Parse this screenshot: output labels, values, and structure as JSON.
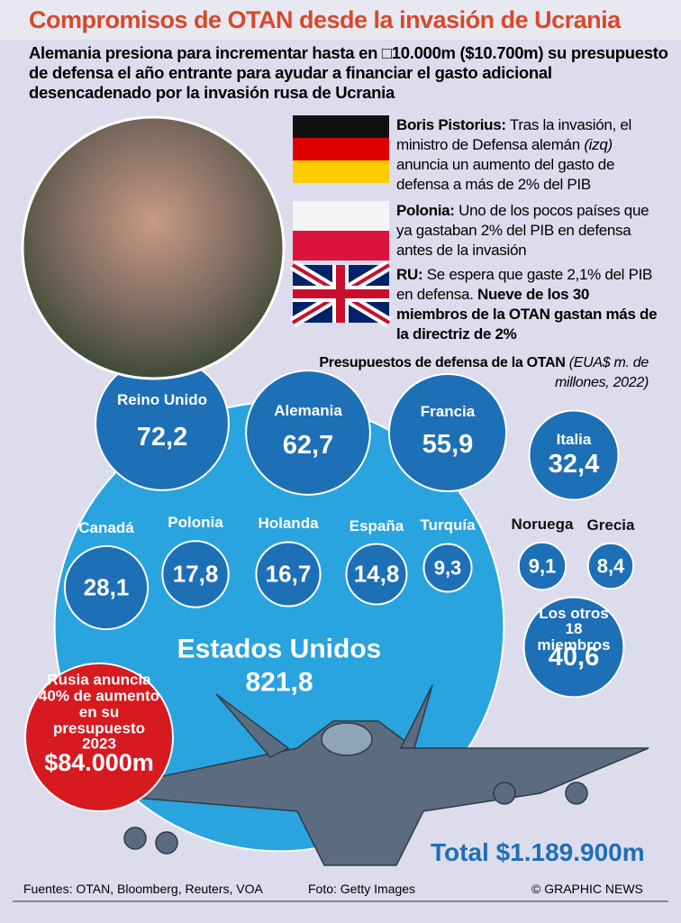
{
  "header": {
    "title": "Compromisos de OTAN desde la invasión de Ucrania",
    "subtitle": "Alemania presiona para incrementar hasta en □10.000m ($10.700m) su presupuesto de defensa el año entrante para ayudar a financiar el gasto adicional desencadenado por la invasión rusa de Ucrania"
  },
  "notes": [
    {
      "bold": "Boris Pistorius:",
      "text": "Tras la invasión, el ministro de Defensa alemán",
      "italic": "(izq)",
      "text2": "anuncia un aumento del gasto de defensa a más de 2% del PIB"
    },
    {
      "bold": "Polonia:",
      "text": "Uno de los pocos países que ya gastaban 2% del PIB en defensa antes de la invasión"
    },
    {
      "bold": "RU:",
      "text": "Se espera que gaste 2,1% del PIB en defensa.",
      "bold2": "Nueve de los 30 miembros de la OTAN gastan más de la directriz de 2%"
    }
  ],
  "chart_data": {
    "type": "bubble",
    "title": "Presupuestos de defensa de la OTAN",
    "units": "(EUA$ m. de millones, 2022)",
    "categories": [
      "Estados Unidos",
      "Reino Unido",
      "Alemania",
      "Francia",
      "Italia",
      "Canadá",
      "Polonia",
      "Holanda",
      "España",
      "Turquía",
      "Noruega",
      "Grecia",
      "Los otros 18 miembros"
    ],
    "values": [
      821.8,
      72.2,
      62.7,
      55.9,
      32.4,
      28.1,
      17.8,
      16.7,
      14.8,
      9.3,
      9.1,
      8.4,
      40.6
    ],
    "value_labels": [
      "821,8",
      "72,2",
      "62,7",
      "55,9",
      "32,4",
      "28,1",
      "17,8",
      "16,7",
      "14,8",
      "9,3",
      "9,1",
      "8,4",
      "40,6"
    ],
    "color": "#1d6fb6",
    "highlight_color": "#29a4de",
    "total": "Total $1.189.900m"
  },
  "russia": {
    "text": "Rusia anuncia 40% de aumento en su presupuesto 2023",
    "amount": "$84.000m"
  },
  "footer": {
    "sources": "Fuentes: OTAN, Bloomberg, Reuters, VOA",
    "photo": "Foto: Getty Images",
    "credit": "© GRAPHIC NEWS"
  }
}
